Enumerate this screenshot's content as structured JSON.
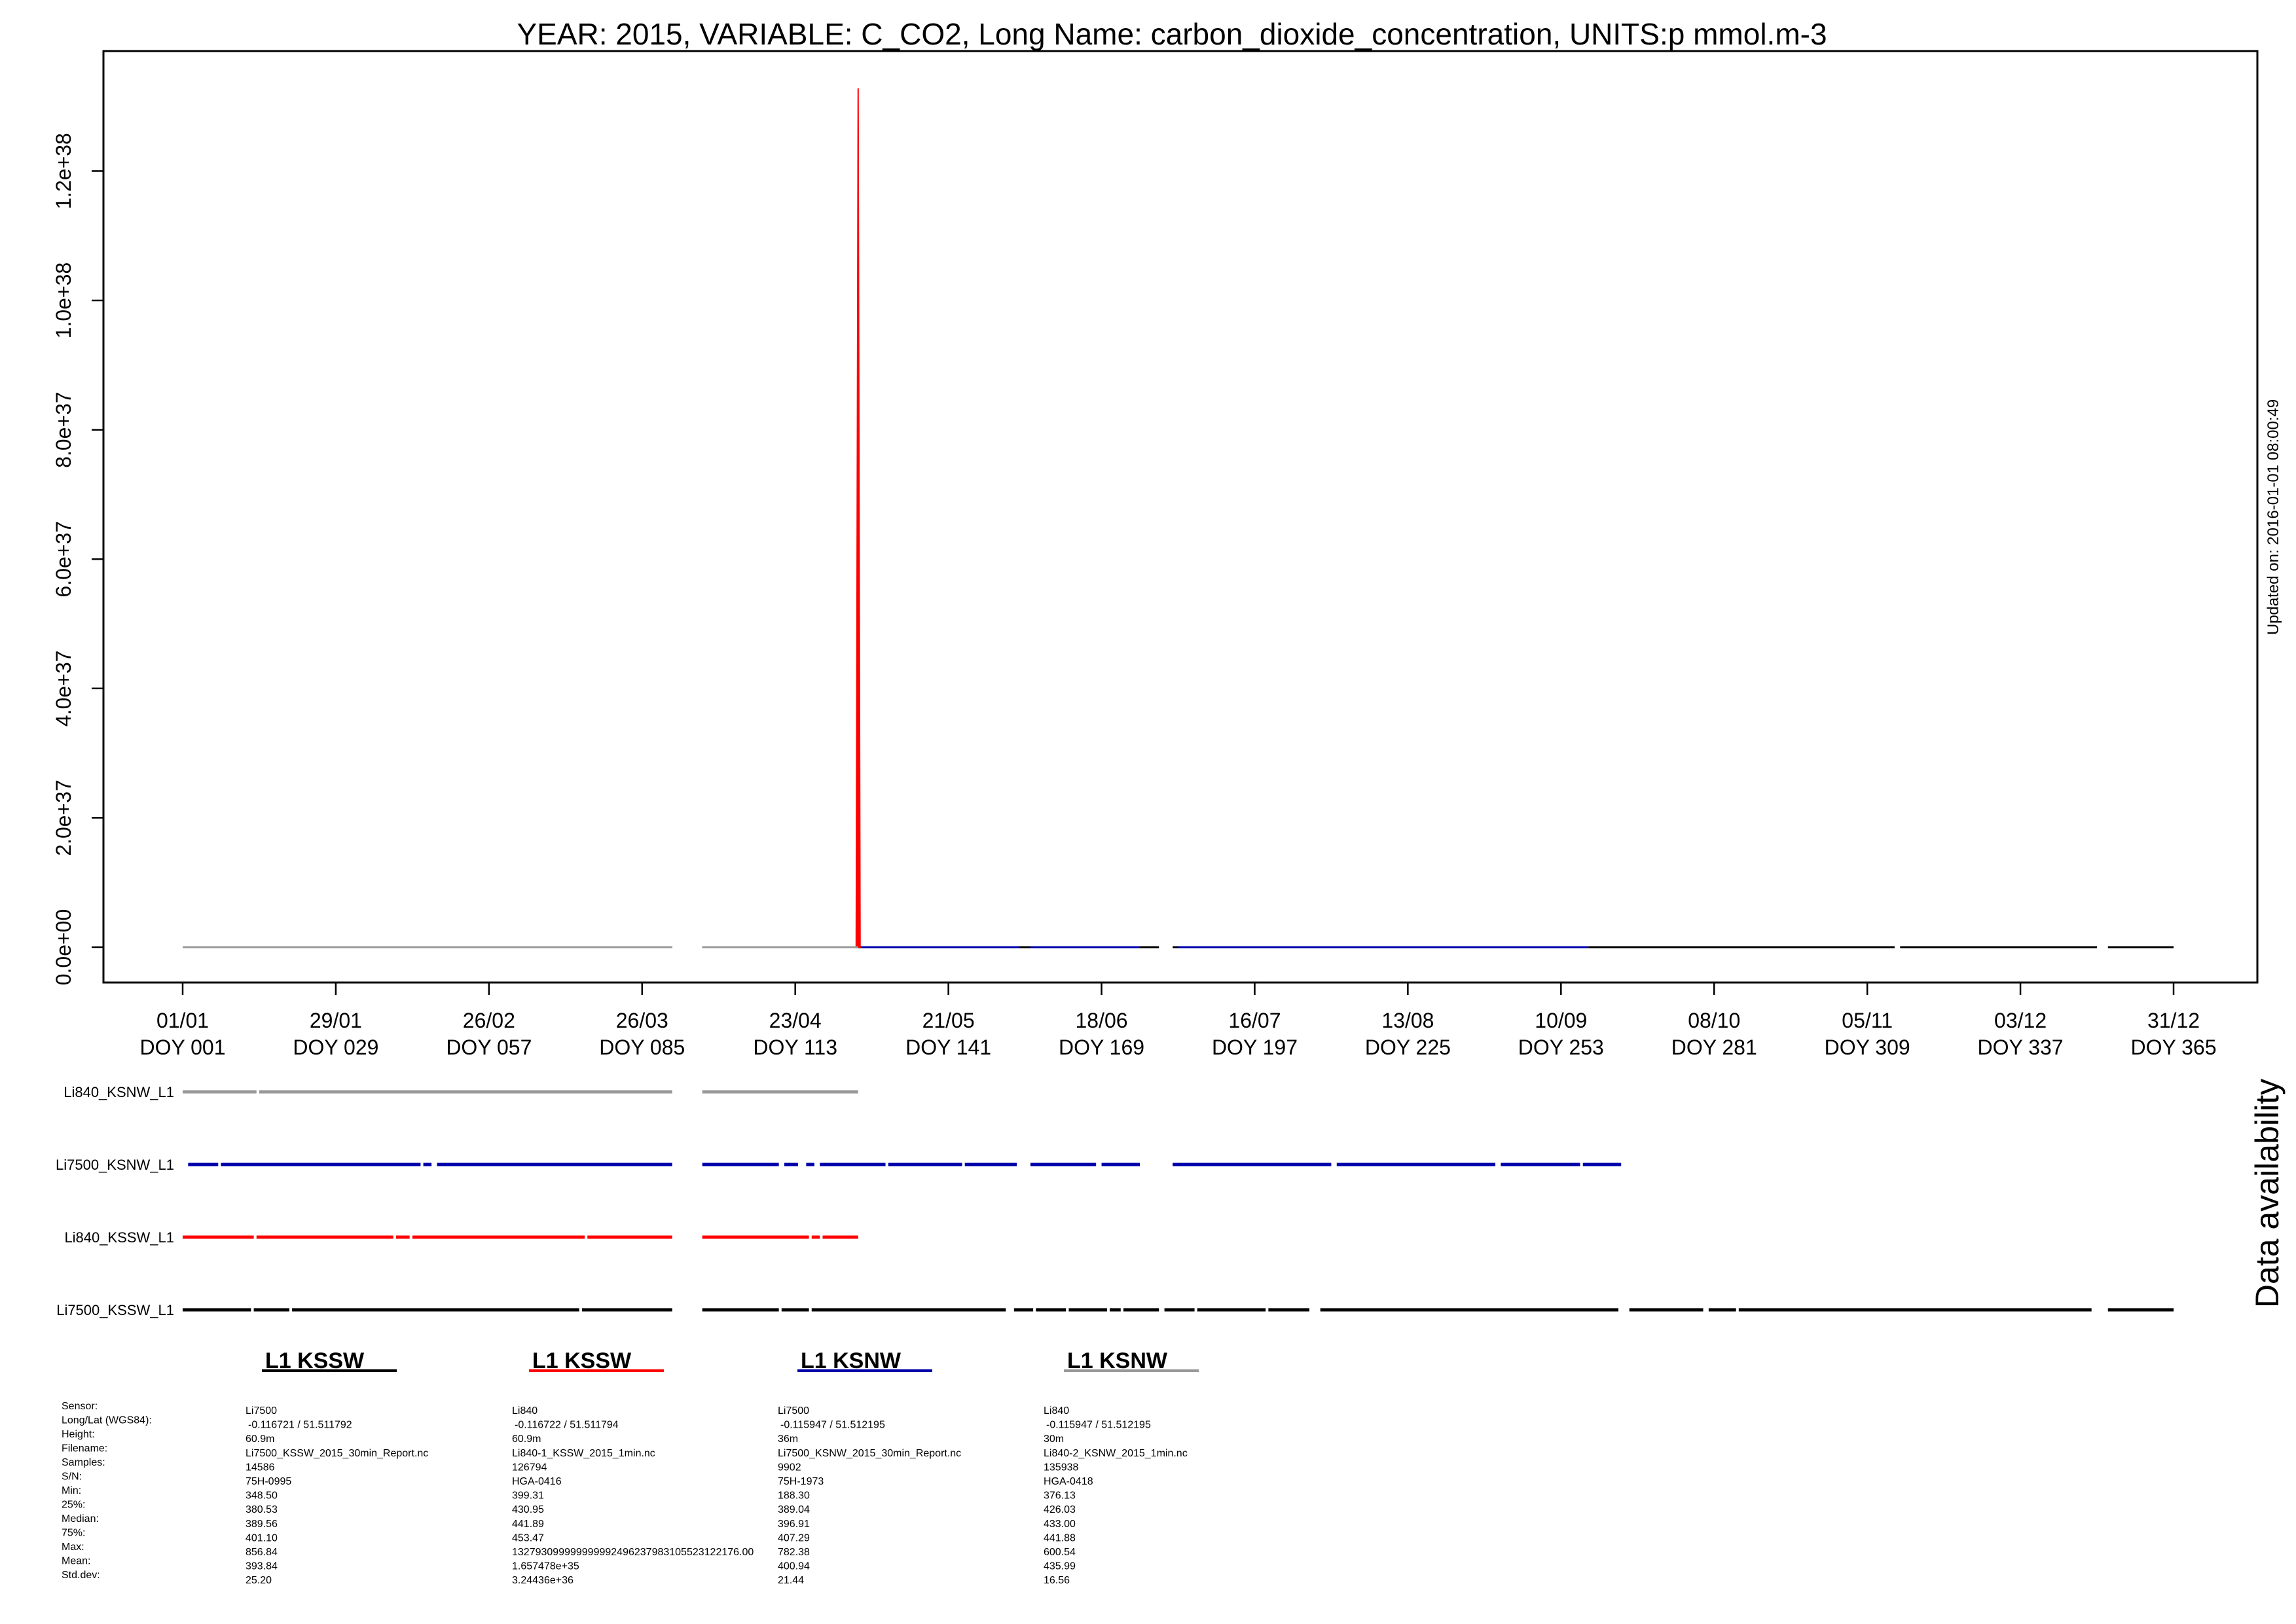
{
  "chart_data": {
    "type": "line",
    "title": "YEAR: 2015, VARIABLE: C_CO2, Long Name: carbon_dioxide_concentration, UNITS:p mmol.m-3",
    "updated": "Updated on: 2016-01-01 08:00:49",
    "availability_label": "Data availability",
    "x_range_doy": [
      1,
      365
    ],
    "ylim": [
      0,
      1.33e+38
    ],
    "y_ticks": [
      {
        "value": 0,
        "label": "0.0e+00"
      },
      {
        "value": 2e+37,
        "label": "2.0e+37"
      },
      {
        "value": 4e+37,
        "label": "4.0e+37"
      },
      {
        "value": 6e+37,
        "label": "6.0e+37"
      },
      {
        "value": 8e+37,
        "label": "8.0e+37"
      },
      {
        "value": 1e+38,
        "label": "1.0e+38"
      },
      {
        "value": 1.2e+38,
        "label": "1.2e+38"
      }
    ],
    "x_ticks": [
      {
        "doy": 1,
        "date": "01/01",
        "doy_label": "DOY 001"
      },
      {
        "doy": 29,
        "date": "29/01",
        "doy_label": "DOY 029"
      },
      {
        "doy": 57,
        "date": "26/02",
        "doy_label": "DOY 057"
      },
      {
        "doy": 85,
        "date": "26/03",
        "doy_label": "DOY 085"
      },
      {
        "doy": 113,
        "date": "23/04",
        "doy_label": "DOY 113"
      },
      {
        "doy": 141,
        "date": "21/05",
        "doy_label": "DOY 141"
      },
      {
        "doy": 169,
        "date": "18/06",
        "doy_label": "DOY 169"
      },
      {
        "doy": 197,
        "date": "16/07",
        "doy_label": "DOY 197"
      },
      {
        "doy": 225,
        "date": "13/08",
        "doy_label": "DOY 225"
      },
      {
        "doy": 253,
        "date": "10/09",
        "doy_label": "DOY 253"
      },
      {
        "doy": 281,
        "date": "08/10",
        "doy_label": "DOY 281"
      },
      {
        "doy": 309,
        "date": "05/11",
        "doy_label": "DOY 309"
      },
      {
        "doy": 337,
        "date": "03/12",
        "doy_label": "DOY 337"
      },
      {
        "doy": 365,
        "date": "31/12",
        "doy_label": "DOY 365"
      }
    ],
    "series": [
      {
        "name": "Li7500_KSSW_L1",
        "color": "#000000",
        "segments": [
          [
            1,
            90.5
          ],
          [
            96,
            151.5
          ],
          [
            153,
            179.5
          ],
          [
            182,
            183
          ],
          [
            184,
            255
          ],
          [
            258,
            314
          ],
          [
            315,
            351
          ],
          [
            353,
            365
          ]
        ]
      },
      {
        "name": "Li840_KSSW_L1",
        "color": "#ff0000",
        "segments": [
          [
            1,
            90.5
          ],
          [
            96,
            124.5
          ]
        ],
        "spike": {
          "doy": 124.5,
          "peak": 1.327931e+38
        }
      },
      {
        "name": "Li7500_KSNW_L1",
        "color": "#0000aa",
        "segments": [
          [
            125,
            154
          ],
          [
            156,
            176
          ],
          [
            183,
            258
          ]
        ]
      },
      {
        "name": "Li840_KSNW_L1",
        "color": "#999999",
        "segments": [
          [
            1,
            90.5
          ],
          [
            96,
            124.5
          ]
        ]
      }
    ],
    "availability": [
      {
        "label": "Li840_KSNW_L1",
        "color": "#999999",
        "segments": [
          [
            1,
            14.5
          ],
          [
            15,
            90.5
          ],
          [
            96,
            124.5
          ]
        ]
      },
      {
        "label": "Li7500_KSNW_L1",
        "color": "#0000aa",
        "segments": [
          [
            2,
            7.5
          ],
          [
            8,
            44.5
          ],
          [
            45,
            46.5
          ],
          [
            47.5,
            90.5
          ],
          [
            96,
            110
          ],
          [
            111,
            113.5
          ],
          [
            115,
            116.5
          ],
          [
            117.5,
            129.5
          ],
          [
            130,
            143.5
          ],
          [
            144,
            153.5
          ],
          [
            156,
            168
          ],
          [
            169,
            176
          ],
          [
            182,
            211
          ],
          [
            212,
            241
          ],
          [
            242,
            256.5
          ],
          [
            257,
            264
          ]
        ]
      },
      {
        "label": "Li840_KSSW_L1",
        "color": "#ff0000",
        "segments": [
          [
            1,
            14
          ],
          [
            14.5,
            39.5
          ],
          [
            40,
            42.5
          ],
          [
            43,
            74.5
          ],
          [
            75,
            90.5
          ],
          [
            96,
            115.5
          ],
          [
            116,
            117.5
          ],
          [
            118,
            124.5
          ]
        ]
      },
      {
        "label": "Li7500_KSSW_L1",
        "color": "#000000",
        "segments": [
          [
            1,
            13.5
          ],
          [
            14,
            20.5
          ],
          [
            21,
            73.5
          ],
          [
            74,
            90.5
          ],
          [
            96,
            110
          ],
          [
            110.5,
            115.5
          ],
          [
            116,
            151.5
          ],
          [
            153,
            156.5
          ],
          [
            157,
            162.5
          ],
          [
            163,
            170
          ],
          [
            170.5,
            172.5
          ],
          [
            173,
            179.5
          ],
          [
            180.5,
            186
          ],
          [
            186.5,
            199
          ],
          [
            199.5,
            207
          ],
          [
            209,
            263.5
          ],
          [
            265.5,
            279
          ],
          [
            280,
            285
          ],
          [
            285.5,
            350
          ],
          [
            353,
            365
          ]
        ]
      }
    ],
    "legend": [
      {
        "title": "L1 KSSW",
        "color": "#000000"
      },
      {
        "title": "L1 KSSW",
        "color": "#ff0000"
      },
      {
        "title": "L1 KSNW",
        "color": "#0000aa"
      },
      {
        "title": "L1 KSNW",
        "color": "#999999"
      }
    ],
    "stats": {
      "row_labels": [
        "Sensor:",
        "Long/Lat (WGS84):",
        "Height:",
        "Filename:",
        "Samples:",
        "S/N:",
        "Min:",
        "25%:",
        "Median:",
        "75%:",
        "Max:",
        "Mean:",
        "Std.dev:"
      ],
      "columns": [
        [
          "Li7500",
          "-0.116721 / 51.511792",
          "60.9m",
          "Li7500_KSSW_2015_30min_Report.nc",
          "14586",
          "75H-0995",
          "348.50",
          "380.53",
          "389.56",
          "401.10",
          "856.84",
          "393.84",
          "25.20"
        ],
        [
          "Li840",
          "-0.116722 / 51.511794",
          "60.9m",
          "Li840-1_KSSW_2015_1min.nc",
          "126794",
          "HGA-0416",
          "399.31",
          "430.95",
          "441.89",
          "453.47",
          "132793099999999992496237983105523122176.00",
          "1.657478e+35",
          "3.24436e+36"
        ],
        [
          "Li7500",
          "-0.115947 / 51.512195",
          "36m",
          "Li7500_KSNW_2015_30min_Report.nc",
          "9902",
          "75H-1973",
          "188.30",
          "389.04",
          "396.91",
          "407.29",
          "782.38",
          "400.94",
          "21.44"
        ],
        [
          "Li840",
          "-0.115947 / 51.512195",
          "30m",
          "Li840-2_KSNW_2015_1min.nc",
          "135938",
          "HGA-0418",
          "376.13",
          "426.03",
          "433.00",
          "441.88",
          "600.54",
          "435.99",
          "16.56"
        ]
      ]
    }
  }
}
